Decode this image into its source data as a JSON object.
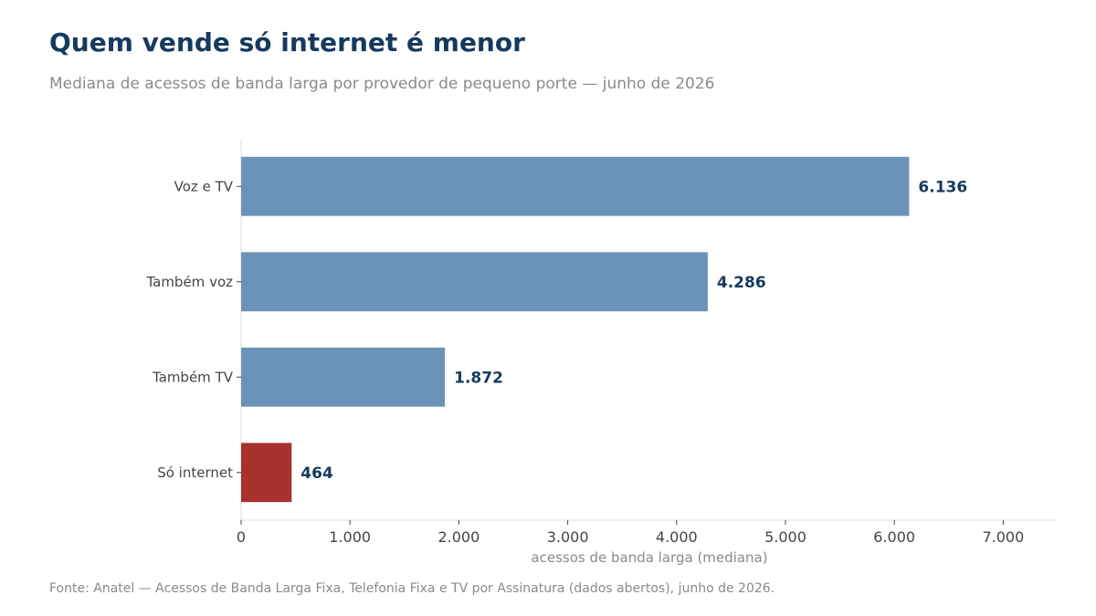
{
  "header": {
    "title": "Quem vende só internet é menor",
    "subtitle": "Mediana de acessos de banda larga por provedor de pequeno porte — junho de 2026"
  },
  "footer": {
    "source": "Fonte: Anatel — Acessos de Banda Larga Fixa, Telefonia Fixa e TV por Assinatura (dados abertos), junho de 2026."
  },
  "chart_data": {
    "type": "bar",
    "orientation": "horizontal",
    "title": "Quem vende só internet é menor",
    "subtitle": "Mediana de acessos de banda larga por provedor de pequeno porte — junho de 2026",
    "xlabel": "acessos de banda larga (mediana)",
    "ylabel": "",
    "categories": [
      "Voz e TV",
      "Também voz",
      "Também TV",
      "Só internet"
    ],
    "values": [
      6136,
      4286,
      1872,
      464
    ],
    "value_labels": [
      "6.136",
      "4.286",
      "1.872",
      "464"
    ],
    "xlim": [
      0,
      7500
    ],
    "xticks": [
      0,
      1000,
      2000,
      3000,
      4000,
      5000,
      6000,
      7000
    ],
    "xtick_labels": [
      "0",
      "1.000",
      "2.000",
      "3.000",
      "4.000",
      "5.000",
      "6.000",
      "7.000"
    ],
    "grid": false,
    "colors": {
      "default": "#6b93b8",
      "highlight": "#a6312d",
      "highlight_category": "Só internet"
    }
  }
}
